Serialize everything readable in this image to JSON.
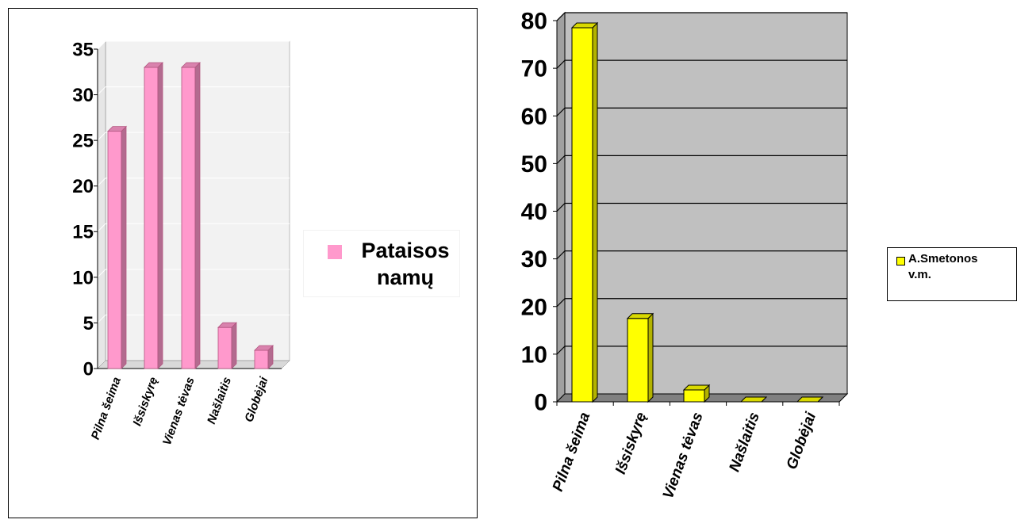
{
  "chart_data": [
    {
      "type": "bar",
      "categories": [
        "Pilna šeima",
        "Išsiskyrę",
        "Vienas tėvas",
        "Našlaitis",
        "Globėjai"
      ],
      "series": [
        {
          "name": "Pataisos namų",
          "values": [
            26,
            33,
            33,
            4.5,
            2
          ]
        }
      ],
      "ylim": [
        0,
        35
      ],
      "yticks": [
        0,
        5,
        10,
        15,
        20,
        25,
        30,
        35
      ],
      "grid": true,
      "legend_position": "right",
      "bar_color": "#ff99cc",
      "wall_color": "#f2f2f2"
    },
    {
      "type": "bar",
      "categories": [
        "Pilna šeima",
        "Išsiskyrę",
        "Vienas tėvas",
        "Našlaitis",
        "Globėjai"
      ],
      "series": [
        {
          "name": "A.Smetonos v.m.",
          "values": [
            78.5,
            17.5,
            2.5,
            0,
            0
          ]
        }
      ],
      "ylim": [
        0,
        80
      ],
      "yticks": [
        0,
        10,
        20,
        30,
        40,
        50,
        60,
        70,
        80
      ],
      "grid": true,
      "legend_position": "right",
      "bar_color": "#ffff00",
      "wall_color": "#c0c0c0"
    }
  ]
}
